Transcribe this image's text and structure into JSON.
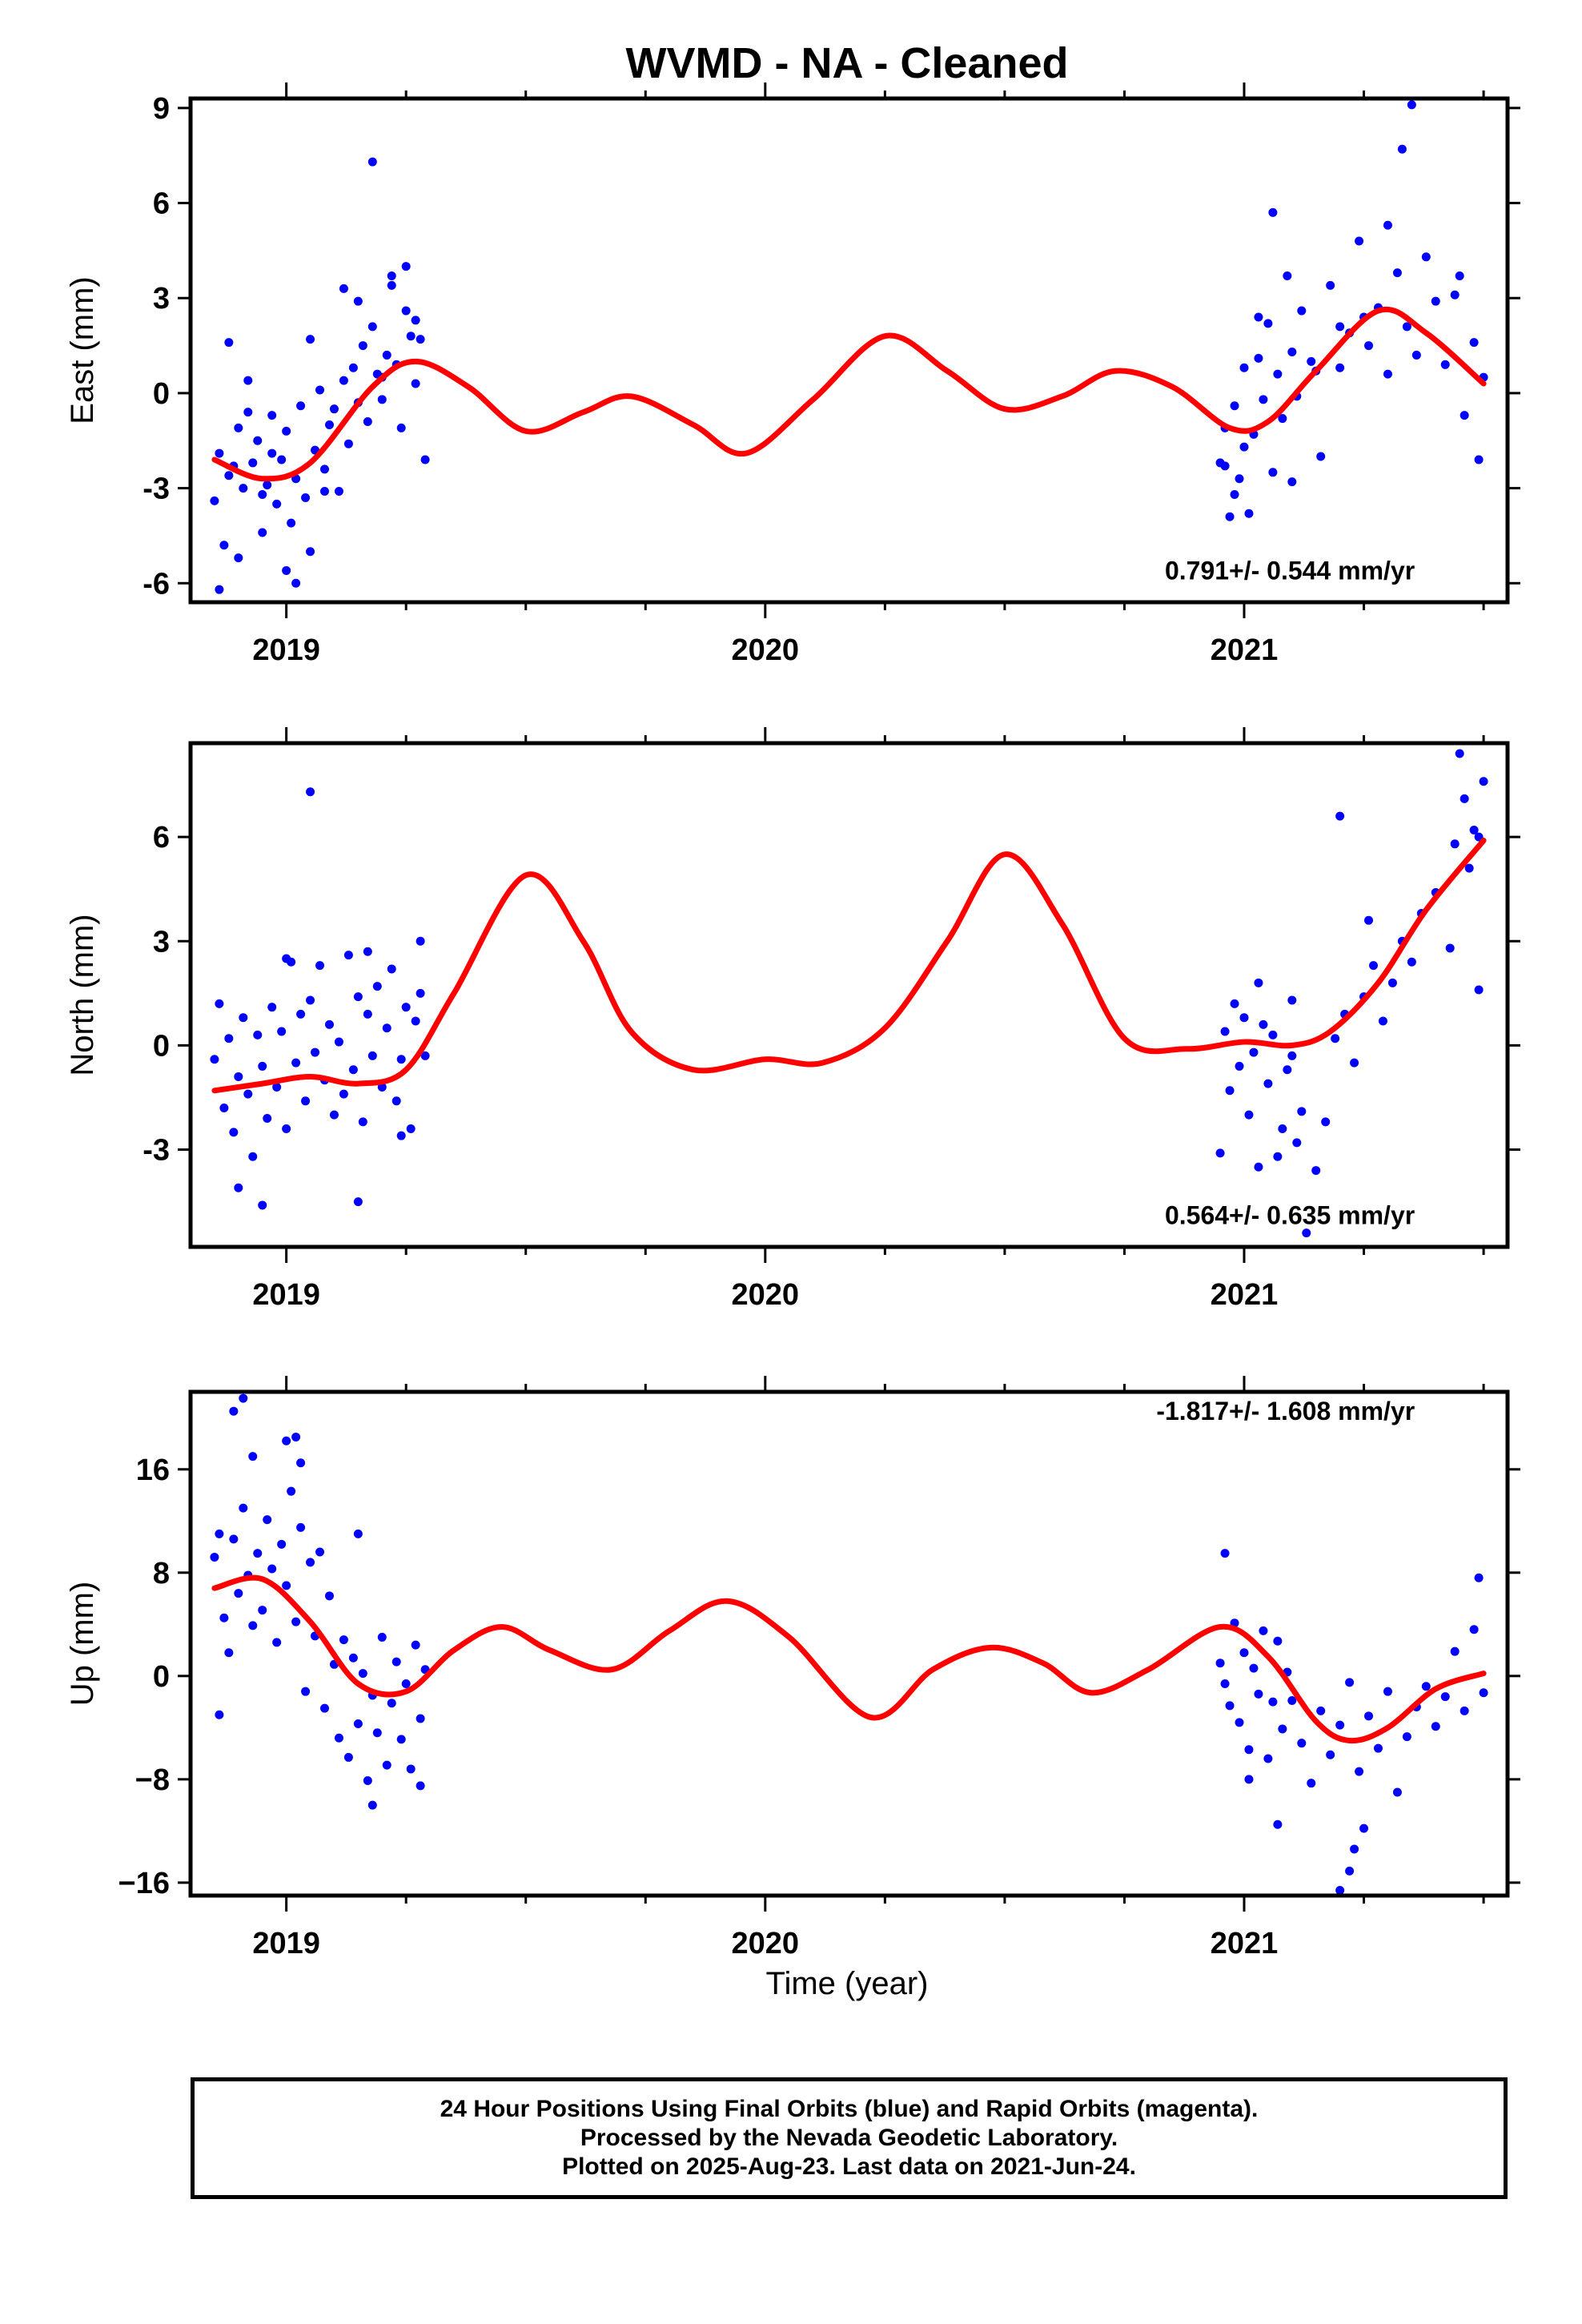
{
  "title": "WVMD  - NA - Cleaned",
  "xlabel": "Time (year)",
  "colors": {
    "data": "#0000ff",
    "model": "#ff0000",
    "axes": "#000000"
  },
  "chart_data": [
    {
      "type": "scatter",
      "panel": "east",
      "ylabel": "East (mm)",
      "rate": "0.791+/- 0.544 mm/yr",
      "xlim": [
        2018.8,
        2021.55
      ],
      "ylim": [
        -6.6,
        9.3
      ],
      "xticks": [
        2019,
        2020,
        2021
      ],
      "yticks": [
        -6,
        -3,
        0,
        3,
        6,
        9
      ],
      "ytick_labels": [
        "-6",
        "-3",
        "0",
        "3",
        "6",
        "9"
      ],
      "series": [
        {
          "kind": "points",
          "x": [
            2018.85,
            2018.86,
            2018.87,
            2018.88,
            2018.89,
            2018.9,
            2018.91,
            2018.92,
            2018.93,
            2018.94,
            2018.95,
            2018.96,
            2018.97,
            2018.98,
            2018.99,
            2019.0,
            2019.01,
            2019.02,
            2019.03,
            2019.04,
            2019.05,
            2019.06,
            2019.07,
            2019.08,
            2019.09,
            2019.1,
            2019.11,
            2019.12,
            2019.13,
            2019.14,
            2019.15,
            2019.16,
            2019.17,
            2019.18,
            2019.19,
            2019.2,
            2019.21,
            2019.22,
            2019.23,
            2019.24,
            2019.25,
            2019.26,
            2019.27,
            2019.28,
            2019.29,
            2018.86,
            2018.88,
            2018.9,
            2018.92,
            2018.95,
            2018.97,
            2019.0,
            2019.02,
            2019.05,
            2019.08,
            2019.12,
            2019.15,
            2019.18,
            2019.2,
            2019.22,
            2019.25,
            2019.27,
            2020.95,
            2020.96,
            2020.97,
            2020.98,
            2020.99,
            2021.0,
            2021.01,
            2021.02,
            2021.03,
            2021.04,
            2021.05,
            2021.06,
            2021.07,
            2021.08,
            2021.09,
            2021.1,
            2021.11,
            2021.12,
            2021.14,
            2021.16,
            2021.18,
            2021.2,
            2021.22,
            2021.24,
            2021.26,
            2021.28,
            2021.3,
            2021.32,
            2021.34,
            2021.36,
            2021.38,
            2021.4,
            2021.42,
            2021.44,
            2021.46,
            2021.48,
            2021.5,
            2020.96,
            2020.98,
            2021.0,
            2021.03,
            2021.06,
            2021.1,
            2021.15,
            2021.2,
            2021.25,
            2021.3,
            2021.33,
            2021.35,
            2021.45,
            2021.49
          ],
          "y": [
            -3.4,
            -1.9,
            -4.8,
            -2.6,
            -2.3,
            -1.1,
            -3.0,
            -0.6,
            -2.2,
            -1.5,
            -4.4,
            -2.9,
            -0.7,
            -3.5,
            -2.1,
            -1.2,
            -4.1,
            -2.7,
            -0.4,
            -3.3,
            -5.0,
            -1.8,
            0.1,
            -2.4,
            -1.0,
            -0.5,
            -3.1,
            0.4,
            -1.6,
            0.8,
            -0.3,
            1.5,
            -0.9,
            2.1,
            0.6,
            -0.2,
            1.2,
            3.4,
            0.9,
            -1.1,
            2.6,
            1.8,
            0.3,
            1.7,
            -2.1,
            -6.2,
            1.6,
            -5.2,
            0.4,
            -3.2,
            -1.9,
            -5.6,
            -6.0,
            1.7,
            -3.1,
            3.3,
            2.9,
            7.3,
            0.5,
            3.7,
            4.0,
            2.3,
            -2.2,
            -1.1,
            -3.9,
            -0.4,
            -2.7,
            0.8,
            -3.8,
            -1.3,
            1.1,
            -0.2,
            2.2,
            -2.5,
            0.6,
            -0.8,
            3.7,
            1.3,
            -0.1,
            2.6,
            1.0,
            -2.0,
            3.4,
            0.8,
            1.9,
            4.8,
            1.5,
            2.7,
            0.6,
            3.8,
            2.1,
            1.2,
            4.3,
            2.9,
            0.9,
            3.1,
            -0.7,
            1.6,
            0.5,
            -2.3,
            -3.2,
            -1.7,
            2.4,
            5.7,
            -2.8,
            0.7,
            2.1,
            2.4,
            5.3,
            7.7,
            9.1,
            3.7,
            -2.1
          ],
          "color": "#0000ff"
        },
        {
          "kind": "line",
          "x": [
            2018.85,
            2018.95,
            2019.05,
            2019.18,
            2019.27,
            2019.38,
            2019.5,
            2019.62,
            2019.72,
            2019.85,
            2019.96,
            2020.1,
            2020.25,
            2020.38,
            2020.5,
            2020.62,
            2020.73,
            2020.85,
            2020.97,
            2021.05,
            2021.15,
            2021.28,
            2021.38,
            2021.5
          ],
          "y": [
            -2.1,
            -2.7,
            -2.2,
            0.2,
            1.0,
            0.2,
            -1.2,
            -0.6,
            -0.1,
            -1.0,
            -1.9,
            -0.2,
            1.8,
            0.7,
            -0.5,
            -0.1,
            0.7,
            0.2,
            -1.1,
            -0.9,
            0.7,
            2.6,
            1.9,
            0.3
          ],
          "color": "#ff0000"
        }
      ]
    },
    {
      "type": "scatter",
      "panel": "north",
      "ylabel": "North (mm)",
      "rate": "0.564+/- 0.635 mm/yr",
      "xlim": [
        2018.8,
        2021.55
      ],
      "ylim": [
        -5.8,
        8.7
      ],
      "xticks": [
        2019,
        2020,
        2021
      ],
      "yticks": [
        -3,
        0,
        3,
        6
      ],
      "ytick_labels": [
        "-3",
        "0",
        "3",
        "6"
      ],
      "series": [
        {
          "kind": "points",
          "x": [
            2018.85,
            2018.86,
            2018.87,
            2018.88,
            2018.89,
            2018.9,
            2018.91,
            2018.92,
            2018.93,
            2018.94,
            2018.95,
            2018.96,
            2018.97,
            2018.98,
            2018.99,
            2019.0,
            2019.01,
            2019.02,
            2019.03,
            2019.04,
            2019.05,
            2019.06,
            2019.07,
            2019.08,
            2019.09,
            2019.1,
            2019.11,
            2019.12,
            2019.13,
            2019.14,
            2019.15,
            2019.16,
            2019.17,
            2019.18,
            2019.19,
            2019.2,
            2019.21,
            2019.22,
            2019.23,
            2019.24,
            2019.25,
            2019.26,
            2019.27,
            2019.28,
            2019.29,
            2018.9,
            2018.95,
            2019.0,
            2019.05,
            2019.15,
            2019.17,
            2019.24,
            2019.28,
            2020.96,
            2020.97,
            2020.98,
            2020.99,
            2021.0,
            2021.01,
            2021.02,
            2021.03,
            2021.04,
            2021.05,
            2021.06,
            2021.07,
            2021.08,
            2021.09,
            2021.1,
            2021.11,
            2021.12,
            2021.15,
            2021.17,
            2021.19,
            2021.21,
            2021.23,
            2021.25,
            2021.27,
            2021.29,
            2021.31,
            2021.33,
            2021.35,
            2021.37,
            2021.4,
            2021.44,
            2021.46,
            2021.48,
            2021.5,
            2021.45,
            2021.47,
            2021.49,
            2021.43,
            2020.95,
            2021.03,
            2021.1,
            2021.13,
            2021.2,
            2021.26,
            2021.49
          ],
          "y": [
            -0.4,
            1.2,
            -1.8,
            0.2,
            -2.5,
            -0.9,
            0.8,
            -1.4,
            -3.2,
            0.3,
            -0.6,
            -2.1,
            1.1,
            -1.2,
            0.4,
            -2.4,
            2.4,
            -0.5,
            0.9,
            -1.6,
            1.3,
            -0.2,
            2.3,
            -1.0,
            0.6,
            -2.0,
            0.1,
            -1.4,
            2.6,
            -0.7,
            1.4,
            -2.2,
            0.9,
            -0.3,
            1.7,
            -1.2,
            0.5,
            2.2,
            -1.6,
            -0.4,
            1.1,
            -2.4,
            0.7,
            1.5,
            -0.3,
            -4.1,
            -4.6,
            2.5,
            7.3,
            -4.5,
            2.7,
            -2.6,
            3.0,
            0.4,
            -1.3,
            1.2,
            -0.6,
            0.8,
            -2.0,
            -0.2,
            1.8,
            0.6,
            -1.1,
            0.3,
            -3.2,
            -2.4,
            -0.7,
            1.3,
            -2.8,
            -1.9,
            -3.6,
            -2.2,
            0.2,
            0.9,
            -0.5,
            1.4,
            2.3,
            0.7,
            1.8,
            3.0,
            2.4,
            3.8,
            4.4,
            5.8,
            7.1,
            6.2,
            7.6,
            8.4,
            5.1,
            6.0,
            2.8,
            -3.1,
            -3.5,
            -0.3,
            -5.4,
            6.6,
            3.6,
            1.6
          ],
          "color": "#0000ff"
        },
        {
          "kind": "line",
          "x": [
            2018.85,
            2018.95,
            2019.05,
            2019.15,
            2019.25,
            2019.35,
            2019.5,
            2019.62,
            2019.72,
            2019.85,
            2020.0,
            2020.12,
            2020.25,
            2020.38,
            2020.5,
            2020.62,
            2020.75,
            2020.88,
            2021.0,
            2021.1,
            2021.18,
            2021.28,
            2021.38,
            2021.5
          ],
          "y": [
            -1.3,
            -1.1,
            -0.9,
            -1.1,
            -0.7,
            1.5,
            4.9,
            3.0,
            0.4,
            -0.7,
            -0.4,
            -0.5,
            0.5,
            3.0,
            5.5,
            3.5,
            0.2,
            -0.1,
            0.1,
            0.0,
            0.4,
            1.8,
            3.9,
            5.9
          ],
          "color": "#ff0000"
        }
      ]
    },
    {
      "type": "scatter",
      "panel": "up",
      "ylabel": "Up (mm)",
      "rate": "-1.817+/- 1.608 mm/yr",
      "xlim": [
        2018.8,
        2021.55
      ],
      "ylim": [
        -17,
        22
      ],
      "xticks": [
        2019,
        2020,
        2021
      ],
      "yticks": [
        -16,
        -8,
        0,
        8,
        16
      ],
      "ytick_labels": [
        "−16",
        "−8",
        "0",
        "8",
        "16"
      ],
      "series": [
        {
          "kind": "points",
          "x": [
            2018.85,
            2018.86,
            2018.87,
            2018.88,
            2018.89,
            2018.9,
            2018.91,
            2018.92,
            2018.93,
            2018.94,
            2018.95,
            2018.96,
            2018.97,
            2018.98,
            2018.99,
            2019.0,
            2019.01,
            2019.02,
            2019.03,
            2019.04,
            2019.05,
            2019.06,
            2019.07,
            2019.08,
            2019.09,
            2019.1,
            2019.11,
            2019.12,
            2019.13,
            2019.14,
            2019.15,
            2019.16,
            2019.17,
            2019.18,
            2019.19,
            2019.2,
            2019.21,
            2019.22,
            2019.23,
            2019.24,
            2019.25,
            2019.26,
            2019.27,
            2019.28,
            2019.29,
            2018.86,
            2018.89,
            2018.91,
            2018.93,
            2019.0,
            2019.02,
            2019.03,
            2019.15,
            2019.18,
            2019.28,
            2020.95,
            2020.96,
            2020.97,
            2020.98,
            2020.99,
            2021.0,
            2021.01,
            2021.02,
            2021.03,
            2021.04,
            2021.05,
            2021.06,
            2021.07,
            2021.08,
            2021.09,
            2021.1,
            2021.12,
            2021.14,
            2021.16,
            2021.18,
            2021.2,
            2021.22,
            2021.24,
            2021.26,
            2021.28,
            2021.3,
            2021.32,
            2021.34,
            2021.36,
            2021.38,
            2021.4,
            2021.42,
            2021.44,
            2021.46,
            2021.48,
            2021.5,
            2020.96,
            2021.01,
            2021.07,
            2021.2,
            2021.22,
            2021.23,
            2021.25,
            2021.49
          ],
          "y": [
            9.2,
            11.0,
            4.5,
            1.8,
            10.6,
            6.4,
            13.0,
            7.8,
            3.9,
            9.5,
            5.1,
            12.1,
            8.3,
            2.6,
            10.2,
            7.0,
            14.3,
            4.2,
            11.5,
            -1.2,
            8.8,
            3.1,
            9.6,
            -2.5,
            6.2,
            0.9,
            -4.8,
            2.8,
            -6.3,
            1.4,
            -3.7,
            0.2,
            -8.1,
            -1.5,
            -4.4,
            3.0,
            -6.9,
            -2.1,
            1.1,
            -4.9,
            -0.6,
            -7.2,
            2.4,
            -3.3,
            0.5,
            -3.0,
            20.5,
            21.5,
            17.0,
            18.2,
            18.5,
            16.5,
            11.0,
            -10.0,
            -8.5,
            1.0,
            -0.6,
            -2.3,
            4.1,
            -3.6,
            1.8,
            -5.7,
            0.6,
            -1.4,
            3.5,
            -6.4,
            -2.0,
            2.7,
            -4.1,
            0.3,
            -1.9,
            -5.2,
            -8.3,
            -2.7,
            -6.1,
            -3.8,
            -0.5,
            -7.4,
            -3.1,
            -5.6,
            -1.2,
            -9.0,
            -4.7,
            -2.4,
            -0.8,
            -3.9,
            -1.6,
            1.9,
            -2.7,
            3.6,
            -1.3,
            9.5,
            -8.0,
            -11.5,
            -16.6,
            -15.1,
            -13.4,
            -11.8,
            7.6
          ],
          "color": "#0000ff"
        },
        {
          "kind": "line",
          "x": [
            2018.85,
            2018.95,
            2019.05,
            2019.15,
            2019.25,
            2019.35,
            2019.45,
            2019.55,
            2019.68,
            2019.8,
            2019.92,
            2020.05,
            2020.22,
            2020.35,
            2020.47,
            2020.58,
            2020.68,
            2020.8,
            2020.95,
            2021.05,
            2021.15,
            2021.22,
            2021.3,
            2021.4,
            2021.5
          ],
          "y": [
            6.8,
            7.5,
            4.2,
            -0.6,
            -1.2,
            2.0,
            3.8,
            2.0,
            0.5,
            3.5,
            5.8,
            3.0,
            -3.2,
            0.5,
            2.2,
            1.0,
            -1.3,
            0.5,
            3.8,
            1.5,
            -3.5,
            -5.0,
            -4.0,
            -1.0,
            0.2
          ],
          "color": "#ff0000"
        }
      ]
    }
  ],
  "footer": {
    "line1": "24 Hour Positions Using Final Orbits (blue) and Rapid Orbits (magenta).",
    "line2": "Processed by the Nevada Geodetic Laboratory.",
    "line3": "Plotted on 2025-Aug-23. Last data on 2021-Jun-24."
  }
}
